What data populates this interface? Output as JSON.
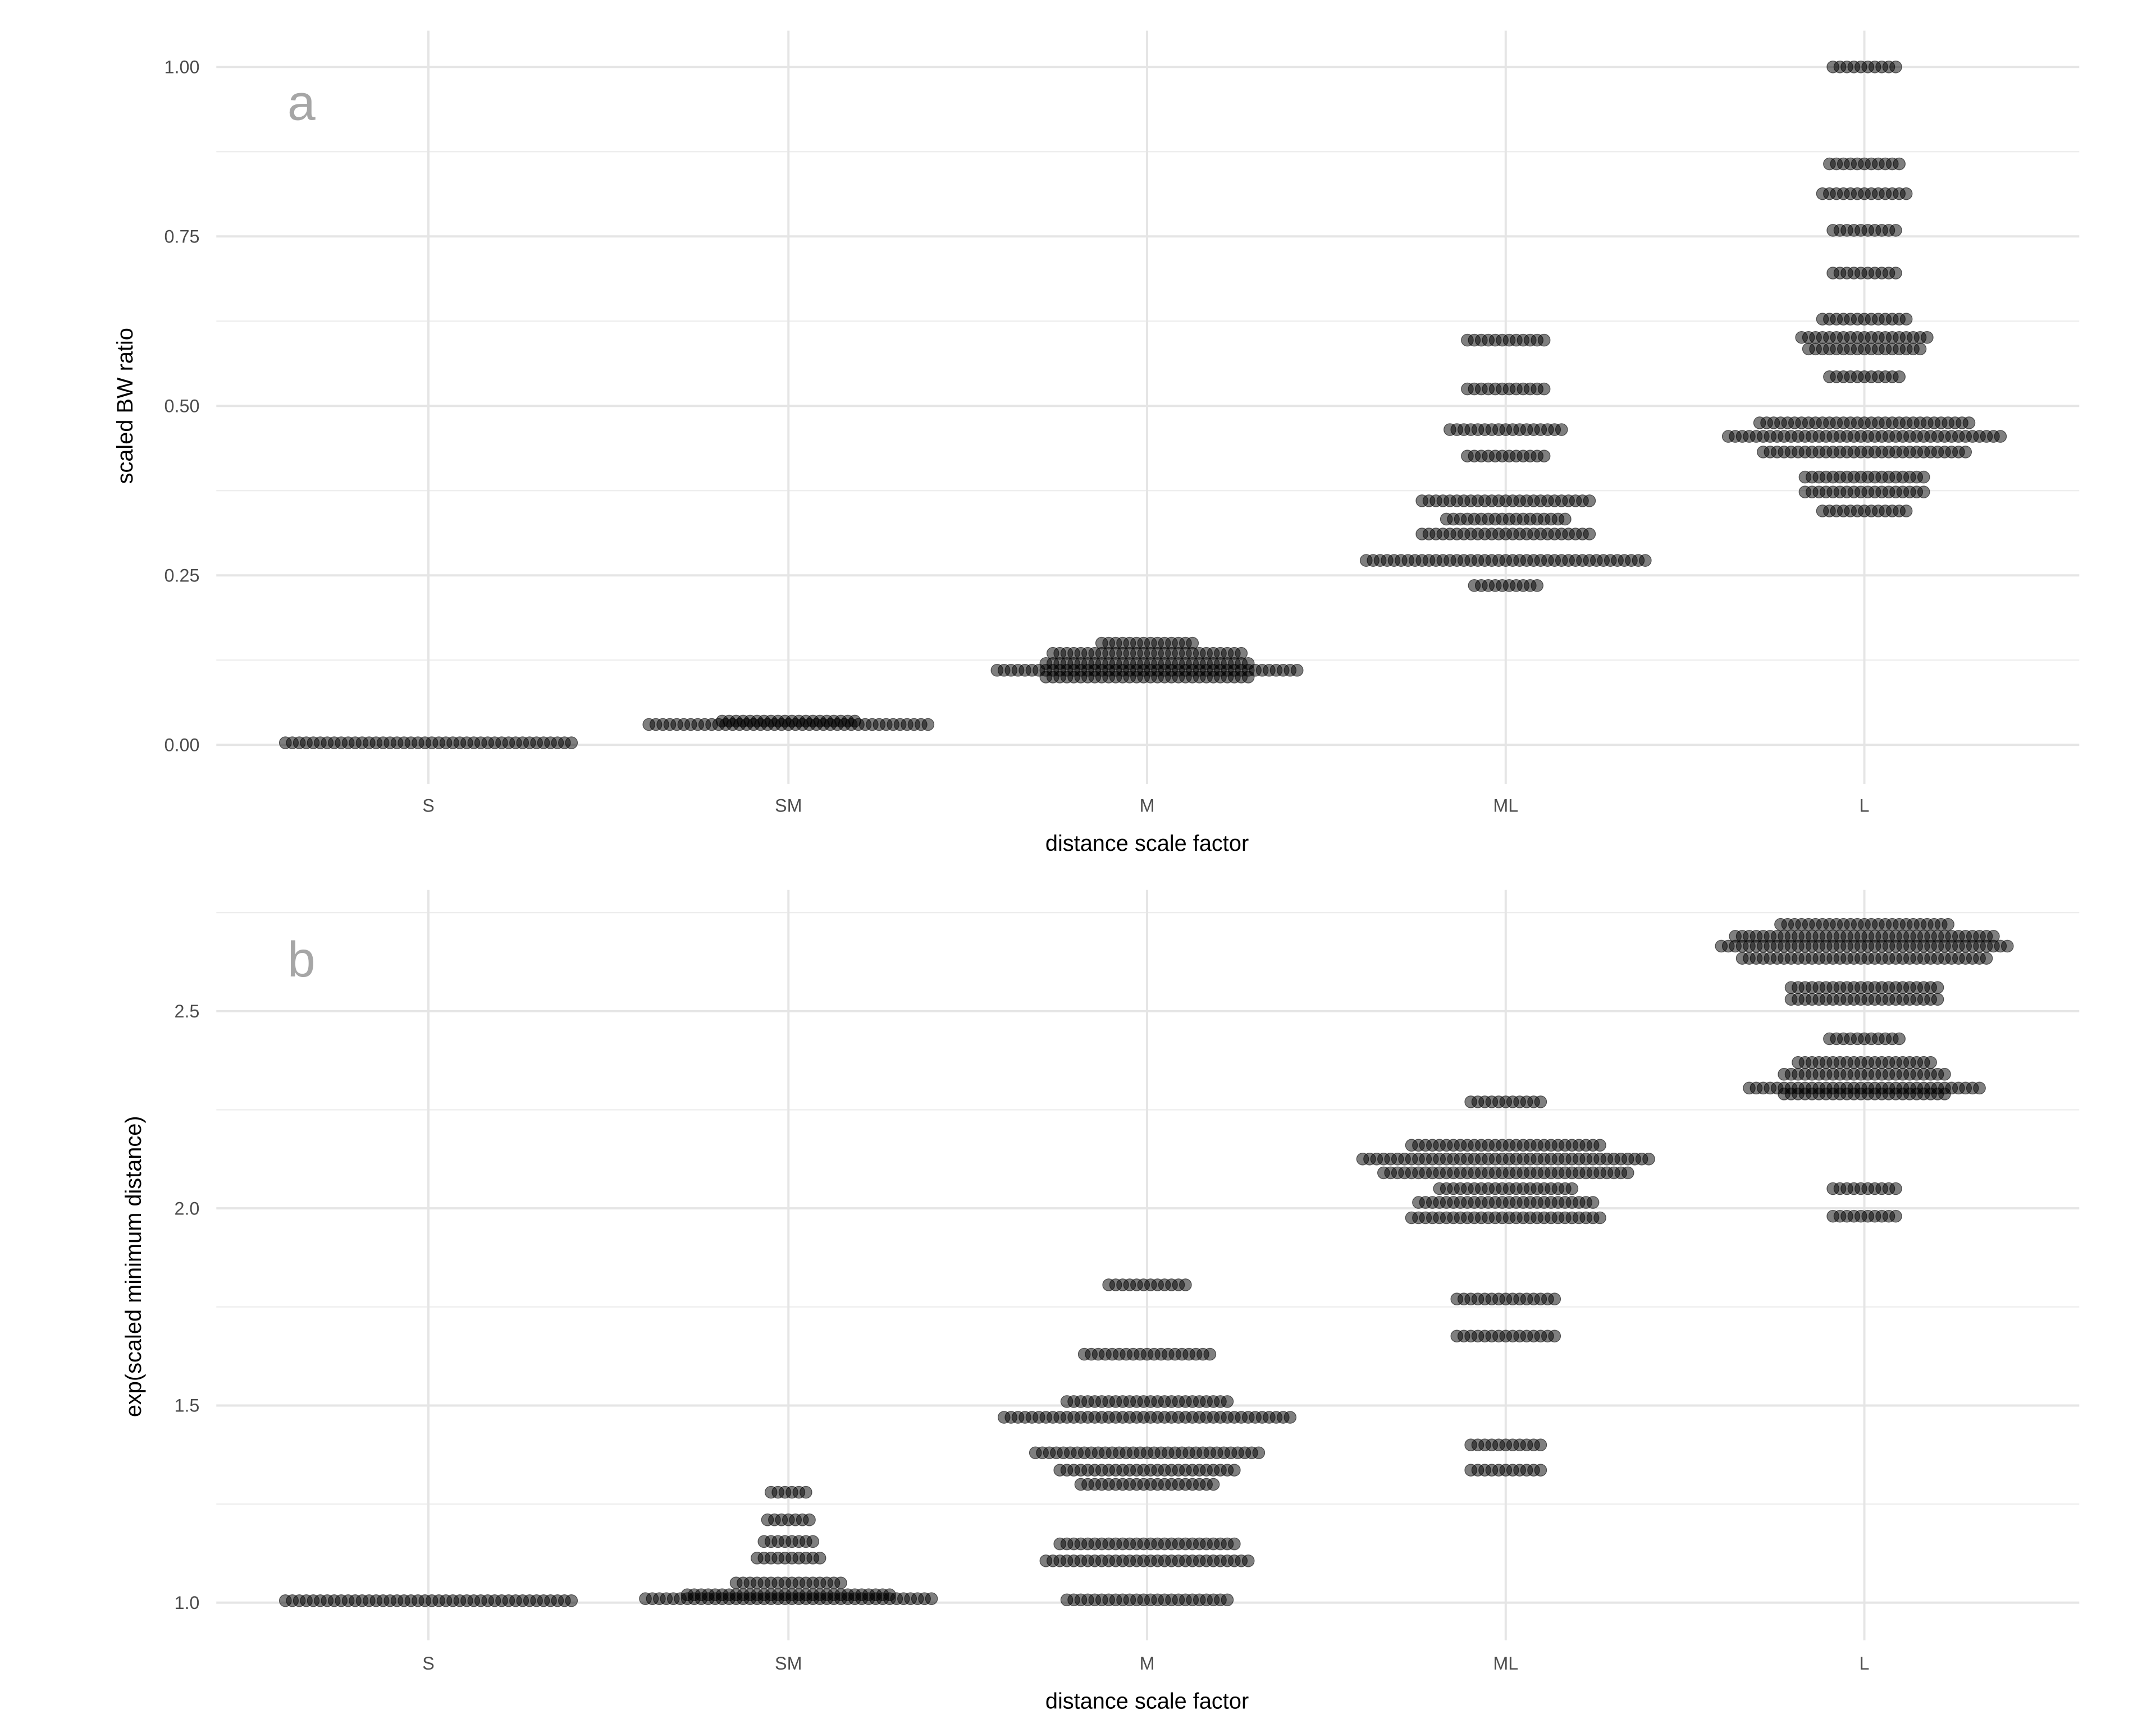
{
  "chart_data": [
    {
      "type": "scatter",
      "subtype": "beeswarm",
      "panel_label": "a",
      "xlabel": "distance scale factor",
      "ylabel": "scaled BW ratio",
      "categories": [
        "S",
        "SM",
        "M",
        "ML",
        "L"
      ],
      "ylim": [
        -0.06,
        1.02
      ],
      "yticks": [
        0.0,
        0.25,
        0.5,
        0.75,
        1.0
      ],
      "ytick_labels": [
        "0.00",
        "0.25",
        "0.50",
        "0.75",
        "1.00"
      ],
      "grid": true,
      "point_color": "#000000",
      "point_alpha": 0.5,
      "rows": {
        "S": [
          [
            0.003,
            42
          ]
        ],
        "SM": [
          [
            0.03,
            41
          ],
          [
            0.035,
            20
          ]
        ],
        "M": [
          [
            0.11,
            44
          ],
          [
            0.1,
            30
          ],
          [
            0.12,
            30
          ],
          [
            0.135,
            28
          ],
          [
            0.15,
            14
          ]
        ],
        "ML": [
          [
            0.597,
            12
          ],
          [
            0.525,
            12
          ],
          [
            0.465,
            17
          ],
          [
            0.426,
            12
          ],
          [
            0.36,
            25
          ],
          [
            0.333,
            18
          ],
          [
            0.311,
            25
          ],
          [
            0.272,
            41
          ],
          [
            0.235,
            10
          ]
        ],
        "L": [
          [
            1.0,
            10
          ],
          [
            0.857,
            11
          ],
          [
            0.813,
            13
          ],
          [
            0.759,
            10
          ],
          [
            0.696,
            10
          ],
          [
            0.628,
            13
          ],
          [
            0.601,
            19
          ],
          [
            0.584,
            17
          ],
          [
            0.543,
            11
          ],
          [
            0.475,
            31
          ],
          [
            0.455,
            40
          ],
          [
            0.432,
            30
          ],
          [
            0.395,
            18
          ],
          [
            0.373,
            18
          ],
          [
            0.345,
            13
          ]
        ]
      }
    },
    {
      "type": "scatter",
      "subtype": "beeswarm",
      "panel_label": "b",
      "xlabel": "distance scale factor",
      "ylabel": "exp(scaled minimum distance)",
      "categories": [
        "S",
        "SM",
        "M",
        "ML",
        "L"
      ],
      "ylim": [
        0.95,
        2.8
      ],
      "yticks": [
        1.0,
        1.5,
        2.0,
        2.5
      ],
      "ytick_labels": [
        "1.0",
        "1.5",
        "2.0",
        "2.5"
      ],
      "grid": true,
      "point_color": "#000000",
      "point_alpha": 0.5,
      "rows": {
        "S": [
          [
            1.005,
            42
          ]
        ],
        "SM": [
          [
            1.01,
            42
          ],
          [
            1.02,
            30
          ],
          [
            1.05,
            16
          ],
          [
            1.113,
            10
          ],
          [
            1.155,
            8
          ],
          [
            1.21,
            7
          ],
          [
            1.28,
            6
          ]
        ],
        "M": [
          [
            1.806,
            12
          ],
          [
            1.63,
            19
          ],
          [
            1.51,
            24
          ],
          [
            1.47,
            42
          ],
          [
            1.38,
            33
          ],
          [
            1.336,
            26
          ],
          [
            1.3,
            20
          ],
          [
            1.149,
            26
          ],
          [
            1.106,
            30
          ],
          [
            1.007,
            24
          ]
        ],
        "ML": [
          [
            2.27,
            11
          ],
          [
            2.16,
            28
          ],
          [
            2.125,
            42
          ],
          [
            2.09,
            36
          ],
          [
            2.05,
            20
          ],
          [
            2.015,
            26
          ],
          [
            1.976,
            28
          ],
          [
            1.77,
            15
          ],
          [
            1.676,
            15
          ],
          [
            1.4,
            11
          ],
          [
            1.336,
            11
          ]
        ],
        "L": [
          [
            2.72,
            25
          ],
          [
            2.69,
            38
          ],
          [
            2.665,
            42
          ],
          [
            2.634,
            36
          ],
          [
            2.56,
            22
          ],
          [
            2.53,
            22
          ],
          [
            2.43,
            11
          ],
          [
            2.37,
            20
          ],
          [
            2.34,
            24
          ],
          [
            2.305,
            34
          ],
          [
            2.29,
            24
          ],
          [
            2.05,
            10
          ],
          [
            1.98,
            10
          ]
        ]
      }
    }
  ]
}
